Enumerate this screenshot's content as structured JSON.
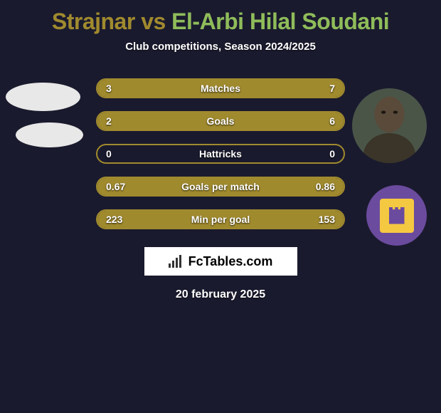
{
  "header": {
    "player1_name": "Strajnar",
    "vs": " vs ",
    "player2_name": "El-Arbi Hilal Soudani",
    "subtitle": "Club competitions, Season 2024/2025"
  },
  "chart": {
    "type": "bar-comparison",
    "background_color": "#1a1a2e",
    "bar_border_color": "#a08a2e",
    "bar_fill_color": "#a08a2e",
    "label_color": "#ffffff",
    "label_fontsize": 14,
    "bars": [
      {
        "label": "Matches",
        "left_value": "3",
        "right_value": "7",
        "left_pct": 30,
        "right_pct": 70
      },
      {
        "label": "Goals",
        "left_value": "2",
        "right_value": "6",
        "left_pct": 25,
        "right_pct": 75
      },
      {
        "label": "Hattricks",
        "left_value": "0",
        "right_value": "0",
        "left_pct": 0,
        "right_pct": 0
      },
      {
        "label": "Goals per match",
        "left_value": "0.67",
        "right_value": "0.86",
        "left_pct": 43.8,
        "right_pct": 56.2
      },
      {
        "label": "Min per goal",
        "left_value": "223",
        "right_value": "153",
        "left_pct": 40.7,
        "right_pct": 59.3
      }
    ]
  },
  "watermark": {
    "text": "FcTables.com"
  },
  "date": "20 february 2025",
  "colors": {
    "player1_accent": "#a08a2e",
    "player2_accent": "#8fbc5a",
    "background": "#1a1a2e",
    "watermark_bg": "#ffffff",
    "badge_bg": "#6b4b9e",
    "badge_inner": "#f5c842"
  }
}
